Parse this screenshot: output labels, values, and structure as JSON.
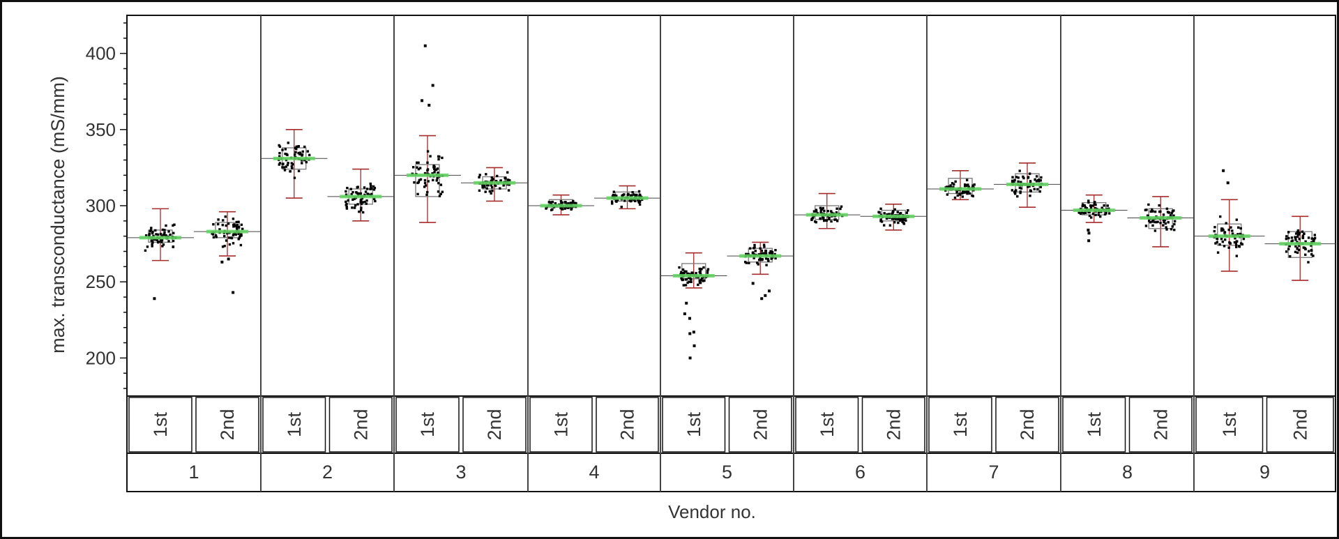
{
  "chart_data": {
    "type": "box-scatter",
    "title": "",
    "xlabel": "Vendor no.",
    "ylabel": "max. transconductance (mS/mm)",
    "ylim": [
      175,
      425
    ],
    "yticks": [
      200,
      250,
      300,
      350,
      400
    ],
    "grid": false,
    "legend": "none",
    "vendors": [
      "1",
      "2",
      "3",
      "4",
      "5",
      "6",
      "7",
      "8",
      "9"
    ],
    "runs": [
      "1st",
      "2nd"
    ],
    "groups": [
      {
        "vendor": "1",
        "run": "1st",
        "median": 279,
        "q1": 276,
        "q3": 284,
        "min": 264,
        "max": 298,
        "spread": 6,
        "outliers": [
          239
        ]
      },
      {
        "vendor": "1",
        "run": "2nd",
        "median": 283,
        "q1": 279,
        "q3": 289,
        "min": 267,
        "max": 296,
        "spread": 7,
        "outliers": [
          243,
          263,
          265
        ]
      },
      {
        "vendor": "2",
        "run": "1st",
        "median": 331,
        "q1": 324,
        "q3": 338,
        "min": 305,
        "max": 350,
        "spread": 9,
        "outliers": []
      },
      {
        "vendor": "2",
        "run": "2nd",
        "median": 306,
        "q1": 301,
        "q3": 311,
        "min": 290,
        "max": 324,
        "spread": 7,
        "outliers": []
      },
      {
        "vendor": "3",
        "run": "1st",
        "median": 320,
        "q1": 306,
        "q3": 327,
        "min": 289,
        "max": 346,
        "spread": 12,
        "outliers": [
          379,
          369,
          366,
          405
        ]
      },
      {
        "vendor": "3",
        "run": "2nd",
        "median": 315,
        "q1": 311,
        "q3": 319,
        "min": 303,
        "max": 325,
        "spread": 5,
        "outliers": []
      },
      {
        "vendor": "4",
        "run": "1st",
        "median": 300,
        "q1": 299,
        "q3": 304,
        "min": 294,
        "max": 307,
        "spread": 3,
        "outliers": []
      },
      {
        "vendor": "4",
        "run": "2nd",
        "median": 305,
        "q1": 303,
        "q3": 309,
        "min": 298,
        "max": 313,
        "spread": 4,
        "outliers": []
      },
      {
        "vendor": "5",
        "run": "1st",
        "median": 254,
        "q1": 252,
        "q3": 262,
        "min": 246,
        "max": 269,
        "spread": 5,
        "outliers": [
          236,
          229,
          226,
          217,
          208,
          200,
          216
        ]
      },
      {
        "vendor": "5",
        "run": "2nd",
        "median": 267,
        "q1": 263,
        "q3": 272,
        "min": 255,
        "max": 276,
        "spread": 5,
        "outliers": [
          249,
          244,
          241,
          239
        ]
      },
      {
        "vendor": "6",
        "run": "1st",
        "median": 294,
        "q1": 291,
        "q3": 300,
        "min": 285,
        "max": 308,
        "spread": 5,
        "outliers": []
      },
      {
        "vendor": "6",
        "run": "2nd",
        "median": 293,
        "q1": 290,
        "q3": 297,
        "min": 284,
        "max": 301,
        "spread": 4,
        "outliers": []
      },
      {
        "vendor": "7",
        "run": "1st",
        "median": 311,
        "q1": 308,
        "q3": 318,
        "min": 304,
        "max": 323,
        "spread": 4,
        "outliers": []
      },
      {
        "vendor": "7",
        "run": "2nd",
        "median": 314,
        "q1": 309,
        "q3": 321,
        "min": 299,
        "max": 328,
        "spread": 6,
        "outliers": []
      },
      {
        "vendor": "8",
        "run": "1st",
        "median": 297,
        "q1": 294,
        "q3": 302,
        "min": 289,
        "max": 307,
        "spread": 4,
        "outliers": [
          277,
          282,
          284
        ]
      },
      {
        "vendor": "8",
        "run": "2nd",
        "median": 292,
        "q1": 285,
        "q3": 298,
        "min": 273,
        "max": 306,
        "spread": 7,
        "outliers": []
      },
      {
        "vendor": "9",
        "run": "1st",
        "median": 280,
        "q1": 274,
        "q3": 288,
        "min": 257,
        "max": 304,
        "spread": 9,
        "outliers": [
          323,
          315
        ]
      },
      {
        "vendor": "9",
        "run": "2nd",
        "median": 275,
        "q1": 266,
        "q3": 283,
        "min": 251,
        "max": 293,
        "spread": 9,
        "outliers": []
      }
    ],
    "colors": {
      "frame": "#111111",
      "panel_line": "#444444",
      "box": "#777777",
      "whisker": "#a52a2a",
      "mean_line": "#5fd35f",
      "points": "#000000",
      "text": "#333333"
    }
  }
}
